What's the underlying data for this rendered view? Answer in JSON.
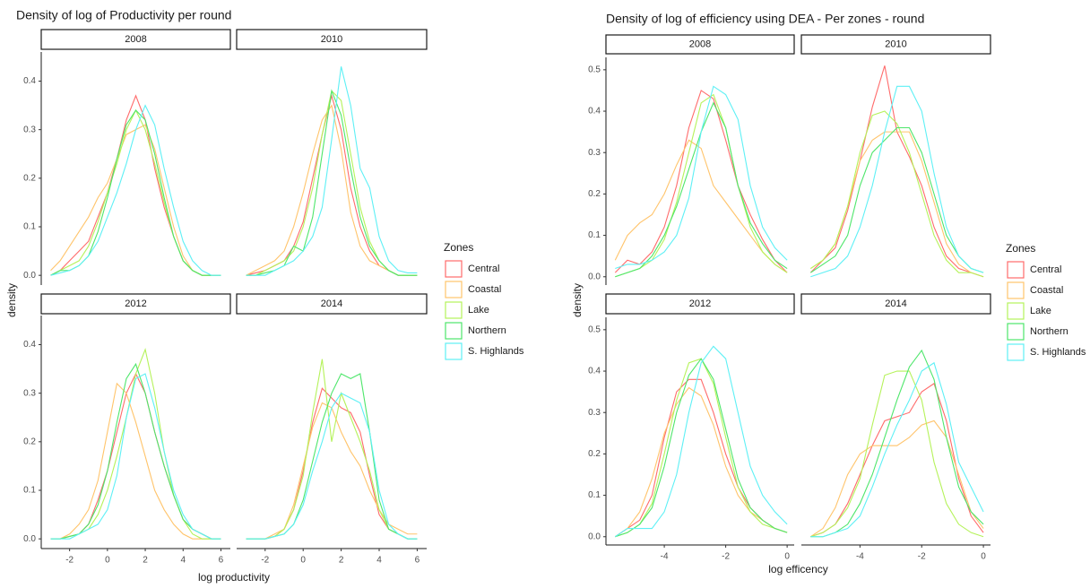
{
  "chart_data": [
    {
      "type": "line",
      "title": "Density of log of Productivity per round",
      "x_label": "log productivity",
      "y_label": "density",
      "legend_title": "Zones",
      "series": [
        {
          "name": "Central",
          "color": "#ff6b6b"
        },
        {
          "name": "Coastal",
          "color": "#ffc46b"
        },
        {
          "name": "Lake",
          "color": "#b5f25a"
        },
        {
          "name": "Northern",
          "color": "#4ee66b"
        },
        {
          "name": "S. Highlands",
          "color": "#5ef0f5"
        }
      ],
      "x": [
        -3,
        -2.5,
        -2,
        -1.5,
        -1,
        -0.5,
        0,
        0.5,
        1,
        1.5,
        2,
        2.5,
        3,
        3.5,
        4,
        4.5,
        5,
        5.5,
        6
      ],
      "xlim": [
        -3.5,
        6.5
      ],
      "xticks": [
        -2,
        0,
        2,
        4,
        6
      ],
      "ylim": [
        -0.02,
        0.46
      ],
      "yticks": [
        {
          "value": 0,
          "label": "0.0"
        },
        0.1,
        0.2,
        0.3,
        0.4
      ],
      "panels": [
        {
          "label": "2008",
          "values": [
            [
              0,
              0.01,
              0.03,
              0.05,
              0.07,
              0.12,
              0.17,
              0.24,
              0.32,
              0.37,
              0.32,
              0.22,
              0.14,
              0.08,
              0.03,
              0.01,
              0,
              0,
              0
            ],
            [
              0.01,
              0.03,
              0.06,
              0.09,
              0.12,
              0.16,
              0.19,
              0.24,
              0.29,
              0.3,
              0.31,
              0.26,
              0.18,
              0.1,
              0.04,
              0.01,
              0,
              0,
              0
            ],
            [
              0,
              0.01,
              0.02,
              0.03,
              0.06,
              0.11,
              0.17,
              0.23,
              0.3,
              0.34,
              0.3,
              0.23,
              0.15,
              0.08,
              0.03,
              0.01,
              0,
              0,
              0
            ],
            [
              0,
              0.01,
              0.01,
              0.02,
              0.04,
              0.09,
              0.16,
              0.24,
              0.31,
              0.34,
              0.32,
              0.25,
              0.16,
              0.08,
              0.03,
              0.01,
              0,
              0,
              0
            ],
            [
              0,
              0.005,
              0.01,
              0.02,
              0.04,
              0.07,
              0.12,
              0.17,
              0.23,
              0.3,
              0.35,
              0.31,
              0.22,
              0.14,
              0.07,
              0.03,
              0.01,
              0,
              0
            ]
          ]
        },
        {
          "label": "2010",
          "values": [
            [
              0,
              0.005,
              0.01,
              0.02,
              0.03,
              0.06,
              0.11,
              0.2,
              0.29,
              0.37,
              0.3,
              0.18,
              0.1,
              0.05,
              0.02,
              0.01,
              0,
              0,
              0
            ],
            [
              0,
              0.01,
              0.02,
              0.03,
              0.05,
              0.1,
              0.17,
              0.25,
              0.32,
              0.35,
              0.26,
              0.13,
              0.06,
              0.03,
              0.02,
              0.01,
              0,
              0,
              0
            ],
            [
              0,
              0,
              0.01,
              0.02,
              0.03,
              0.05,
              0.1,
              0.18,
              0.29,
              0.38,
              0.36,
              0.25,
              0.14,
              0.07,
              0.03,
              0.01,
              0,
              0,
              0
            ],
            [
              0,
              0,
              0.005,
              0.01,
              0.02,
              0.06,
              0.05,
              0.12,
              0.25,
              0.38,
              0.33,
              0.22,
              0.12,
              0.06,
              0.03,
              0.01,
              0,
              0,
              0
            ],
            [
              0,
              0,
              0,
              0.01,
              0.02,
              0.03,
              0.05,
              0.08,
              0.14,
              0.28,
              0.43,
              0.35,
              0.22,
              0.18,
              0.08,
              0.03,
              0.01,
              0.005,
              0.005
            ]
          ]
        },
        {
          "label": "2012",
          "values": [
            [
              0,
              0,
              0.005,
              0.01,
              0.03,
              0.08,
              0.14,
              0.22,
              0.3,
              0.34,
              0.3,
              0.22,
              0.15,
              0.09,
              0.04,
              0.02,
              0.01,
              0,
              0
            ],
            [
              0,
              0,
              0.01,
              0.03,
              0.06,
              0.12,
              0.22,
              0.32,
              0.3,
              0.24,
              0.17,
              0.1,
              0.06,
              0.03,
              0.01,
              0,
              0,
              0,
              0
            ],
            [
              0,
              0,
              0.005,
              0.01,
              0.02,
              0.05,
              0.1,
              0.17,
              0.25,
              0.34,
              0.39,
              0.3,
              0.18,
              0.09,
              0.04,
              0.01,
              0,
              0,
              0
            ],
            [
              0,
              0,
              0.005,
              0.01,
              0.03,
              0.07,
              0.14,
              0.24,
              0.33,
              0.36,
              0.3,
              0.22,
              0.15,
              0.09,
              0.04,
              0.02,
              0.01,
              0,
              0
            ],
            [
              0,
              0,
              0,
              0.01,
              0.02,
              0.03,
              0.06,
              0.13,
              0.25,
              0.33,
              0.34,
              0.27,
              0.18,
              0.1,
              0.05,
              0.02,
              0.01,
              0,
              0
            ]
          ]
        },
        {
          "label": "2014",
          "values": [
            [
              0,
              0,
              0,
              0.005,
              0.02,
              0.06,
              0.14,
              0.24,
              0.31,
              0.29,
              0.27,
              0.26,
              0.22,
              0.13,
              0.05,
              0.02,
              0.01,
              0,
              0
            ],
            [
              0,
              0,
              0,
              0.01,
              0.02,
              0.07,
              0.15,
              0.23,
              0.28,
              0.27,
              0.22,
              0.18,
              0.15,
              0.1,
              0.06,
              0.03,
              0.02,
              0.01,
              0.01
            ],
            [
              0,
              0,
              0,
              0.005,
              0.02,
              0.06,
              0.13,
              0.26,
              0.37,
              0.2,
              0.3,
              0.25,
              0.2,
              0.14,
              0.06,
              0.02,
              0.01,
              0,
              0
            ],
            [
              0,
              0,
              0,
              0.005,
              0.01,
              0.03,
              0.08,
              0.16,
              0.24,
              0.3,
              0.34,
              0.33,
              0.34,
              0.22,
              0.08,
              0.02,
              0.01,
              0,
              0
            ],
            [
              0,
              0,
              0,
              0.005,
              0.01,
              0.03,
              0.07,
              0.14,
              0.2,
              0.27,
              0.3,
              0.29,
              0.28,
              0.22,
              0.1,
              0.03,
              0.01,
              0,
              0
            ]
          ]
        }
      ]
    },
    {
      "type": "line",
      "title": "Density of log of efficiency using DEA - Per zones - round",
      "x_label": "log efficency",
      "y_label": "density",
      "legend_title": "Zones",
      "series": [
        {
          "name": "Central",
          "color": "#ff6b6b"
        },
        {
          "name": "Coastal",
          "color": "#ffc46b"
        },
        {
          "name": "Lake",
          "color": "#b5f25a"
        },
        {
          "name": "Northern",
          "color": "#4ee66b"
        },
        {
          "name": "S. Highlands",
          "color": "#5ef0f5"
        }
      ],
      "x": [
        -5.6,
        -5.2,
        -4.8,
        -4.4,
        -4.0,
        -3.6,
        -3.2,
        -2.8,
        -2.4,
        -2.0,
        -1.6,
        -1.2,
        -0.8,
        -0.4,
        0.0
      ],
      "xlim": [
        -5.9,
        0.23
      ],
      "xticks": [
        -4,
        -2,
        0
      ],
      "ylim": [
        -0.02,
        0.53
      ],
      "yticks": [
        {
          "value": 0,
          "label": "0.0"
        },
        0.1,
        0.2,
        0.3,
        0.4,
        0.5
      ],
      "panels": [
        {
          "label": "2008",
          "values": [
            [
              0.01,
              0.04,
              0.03,
              0.06,
              0.12,
              0.22,
              0.36,
              0.45,
              0.43,
              0.33,
              0.22,
              0.15,
              0.09,
              0.04,
              0.01
            ],
            [
              0.04,
              0.1,
              0.13,
              0.15,
              0.2,
              0.27,
              0.33,
              0.31,
              0.22,
              0.18,
              0.14,
              0.1,
              0.06,
              0.03,
              0.01
            ],
            [
              0,
              0.01,
              0.02,
              0.04,
              0.09,
              0.18,
              0.3,
              0.42,
              0.44,
              0.36,
              0.22,
              0.12,
              0.06,
              0.03,
              0.01
            ],
            [
              0,
              0.01,
              0.02,
              0.05,
              0.1,
              0.17,
              0.26,
              0.35,
              0.42,
              0.36,
              0.22,
              0.13,
              0.08,
              0.04,
              0.02
            ],
            [
              0.02,
              0.03,
              0.03,
              0.04,
              0.06,
              0.1,
              0.19,
              0.35,
              0.46,
              0.44,
              0.38,
              0.22,
              0.12,
              0.07,
              0.04
            ]
          ]
        },
        {
          "label": "2010",
          "values": [
            [
              0.01,
              0.04,
              0.07,
              0.16,
              0.28,
              0.41,
              0.51,
              0.35,
              0.29,
              0.22,
              0.12,
              0.05,
              0.02,
              0.01,
              0
            ],
            [
              0.02,
              0.04,
              0.08,
              0.17,
              0.28,
              0.33,
              0.35,
              0.35,
              0.35,
              0.28,
              0.18,
              0.08,
              0.03,
              0.01,
              0
            ],
            [
              0.02,
              0.04,
              0.08,
              0.17,
              0.3,
              0.39,
              0.4,
              0.37,
              0.3,
              0.2,
              0.1,
              0.04,
              0.01,
              0.01,
              0
            ],
            [
              0.01,
              0.03,
              0.05,
              0.1,
              0.22,
              0.3,
              0.33,
              0.36,
              0.36,
              0.3,
              0.2,
              0.1,
              0.05,
              0.02,
              0.01
            ],
            [
              0,
              0.01,
              0.02,
              0.05,
              0.12,
              0.22,
              0.35,
              0.46,
              0.46,
              0.4,
              0.25,
              0.12,
              0.05,
              0.02,
              0.01
            ]
          ]
        },
        {
          "label": "2012",
          "values": [
            [
              0,
              0.02,
              0.04,
              0.1,
              0.24,
              0.35,
              0.38,
              0.38,
              0.3,
              0.2,
              0.12,
              0.07,
              0.04,
              0.02,
              0.01
            ],
            [
              0,
              0.02,
              0.06,
              0.14,
              0.25,
              0.32,
              0.36,
              0.34,
              0.27,
              0.17,
              0.1,
              0.06,
              0.04,
              0.02,
              0.01
            ],
            [
              0,
              0.01,
              0.03,
              0.08,
              0.2,
              0.33,
              0.42,
              0.43,
              0.37,
              0.24,
              0.12,
              0.06,
              0.03,
              0.02,
              0.01
            ],
            [
              0,
              0.01,
              0.03,
              0.07,
              0.17,
              0.3,
              0.39,
              0.43,
              0.38,
              0.26,
              0.14,
              0.07,
              0.04,
              0.02,
              0.01
            ],
            [
              0,
              0.02,
              0.02,
              0.02,
              0.06,
              0.15,
              0.3,
              0.42,
              0.46,
              0.43,
              0.3,
              0.17,
              0.1,
              0.06,
              0.03
            ]
          ]
        },
        {
          "label": "2014",
          "values": [
            [
              0,
              0.01,
              0.03,
              0.08,
              0.15,
              0.22,
              0.28,
              0.29,
              0.3,
              0.35,
              0.37,
              0.28,
              0.14,
              0.05,
              0.01
            ],
            [
              0,
              0.02,
              0.07,
              0.15,
              0.2,
              0.22,
              0.22,
              0.22,
              0.24,
              0.27,
              0.28,
              0.24,
              0.15,
              0.06,
              0.02
            ],
            [
              0,
              0.01,
              0.03,
              0.07,
              0.14,
              0.27,
              0.39,
              0.4,
              0.4,
              0.33,
              0.18,
              0.08,
              0.03,
              0.01,
              0
            ],
            [
              0,
              0,
              0.01,
              0.03,
              0.08,
              0.15,
              0.24,
              0.33,
              0.41,
              0.45,
              0.38,
              0.24,
              0.12,
              0.06,
              0.03
            ],
            [
              0,
              0,
              0.01,
              0.02,
              0.05,
              0.12,
              0.2,
              0.27,
              0.33,
              0.4,
              0.42,
              0.32,
              0.18,
              0.12,
              0.06
            ]
          ]
        }
      ]
    }
  ]
}
